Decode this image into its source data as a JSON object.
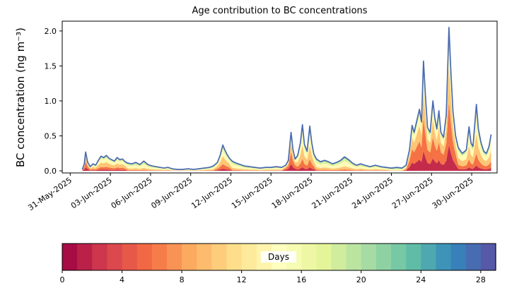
{
  "chart_data": {
    "type": "area",
    "title": "Age contribution to BC concentrations",
    "xlabel": "",
    "ylabel": "BC concentration (ng m⁻³)",
    "xlim": [
      -0.6,
      31.9
    ],
    "ylim": [
      -0.03,
      2.14
    ],
    "grid": false,
    "legend": "none",
    "line_color": "#4a6baf",
    "yticks": {
      "values": [
        0,
        0.5,
        1.0,
        1.5,
        2.0
      ],
      "labels": [
        "0.0",
        "0.5",
        "1.0",
        "1.5",
        "2.0"
      ]
    },
    "xticks": {
      "values": [
        0,
        3,
        6,
        9,
        12,
        15,
        18,
        21,
        24,
        27,
        30
      ],
      "labels": [
        "31-May-2025",
        "03-Jun-2025",
        "06-Jun-2025",
        "09-Jun-2025",
        "12-Jun-2025",
        "15-Jun-2025",
        "18-Jun-2025",
        "21-Jun-2025",
        "24-Jun-2025",
        "27-Jun-2025",
        "30-Jun-2025"
      ]
    },
    "age_bins": [
      {
        "label": "0-4",
        "color": "#c42b4b"
      },
      {
        "label": "4-8",
        "color": "#f57245"
      },
      {
        "label": "8-12",
        "color": "#fec574"
      },
      {
        "label": "12-16",
        "color": "#fffab6"
      },
      {
        "label": "16-20",
        "color": "#daf09b"
      },
      {
        "label": "20-24",
        "color": "#82cda5"
      },
      {
        "label": "24-28",
        "color": "#348abc"
      }
    ],
    "profiles": [
      [
        0.02,
        0.08,
        0.22,
        0.38,
        0.2,
        0.07,
        0.03
      ],
      [
        0.18,
        0.3,
        0.25,
        0.17,
        0.07,
        0.02,
        0.01
      ],
      [
        0.08,
        0.18,
        0.3,
        0.28,
        0.1,
        0.04,
        0.02
      ],
      [
        0.01,
        0.04,
        0.12,
        0.3,
        0.3,
        0.15,
        0.08
      ]
    ],
    "points": [
      [
        0.9,
        0.02,
        1
      ],
      [
        1.05,
        0.1,
        1
      ],
      [
        1.15,
        0.27,
        1
      ],
      [
        1.3,
        0.12,
        1
      ],
      [
        1.5,
        0.06,
        2
      ],
      [
        1.7,
        0.1,
        2
      ],
      [
        1.9,
        0.08,
        2
      ],
      [
        2.1,
        0.15,
        2
      ],
      [
        2.3,
        0.21,
        2
      ],
      [
        2.5,
        0.19,
        2
      ],
      [
        2.7,
        0.22,
        2
      ],
      [
        2.9,
        0.18,
        2
      ],
      [
        3.1,
        0.16,
        2
      ],
      [
        3.3,
        0.14,
        2
      ],
      [
        3.5,
        0.19,
        2
      ],
      [
        3.7,
        0.16,
        2
      ],
      [
        3.9,
        0.17,
        2
      ],
      [
        4.1,
        0.13,
        2
      ],
      [
        4.3,
        0.11,
        0
      ],
      [
        4.6,
        0.1,
        0
      ],
      [
        4.9,
        0.12,
        0
      ],
      [
        5.2,
        0.09,
        0
      ],
      [
        5.5,
        0.14,
        0
      ],
      [
        5.8,
        0.09,
        0
      ],
      [
        6.1,
        0.07,
        0
      ],
      [
        6.4,
        0.06,
        0
      ],
      [
        6.7,
        0.05,
        0
      ],
      [
        7.0,
        0.04,
        0
      ],
      [
        7.3,
        0.05,
        0
      ],
      [
        7.6,
        0.03,
        0
      ],
      [
        8.0,
        0.02,
        0
      ],
      [
        8.4,
        0.02,
        0
      ],
      [
        8.8,
        0.03,
        0
      ],
      [
        9.2,
        0.02,
        0
      ],
      [
        9.6,
        0.03,
        0
      ],
      [
        10.0,
        0.04,
        0
      ],
      [
        10.4,
        0.05,
        0
      ],
      [
        10.7,
        0.07,
        0
      ],
      [
        11.0,
        0.12,
        2
      ],
      [
        11.2,
        0.22,
        2
      ],
      [
        11.4,
        0.37,
        2
      ],
      [
        11.55,
        0.3,
        2
      ],
      [
        11.7,
        0.24,
        2
      ],
      [
        11.9,
        0.18,
        2
      ],
      [
        12.1,
        0.14,
        0
      ],
      [
        12.4,
        0.11,
        0
      ],
      [
        12.7,
        0.09,
        0
      ],
      [
        13.0,
        0.07,
        0
      ],
      [
        13.4,
        0.06,
        0
      ],
      [
        13.8,
        0.05,
        0
      ],
      [
        14.2,
        0.04,
        0
      ],
      [
        14.6,
        0.05,
        0
      ],
      [
        15.0,
        0.05,
        0
      ],
      [
        15.4,
        0.06,
        0
      ],
      [
        15.8,
        0.05,
        0
      ],
      [
        16.1,
        0.08,
        1
      ],
      [
        16.3,
        0.15,
        1
      ],
      [
        16.5,
        0.55,
        1
      ],
      [
        16.65,
        0.3,
        1
      ],
      [
        16.8,
        0.17,
        1
      ],
      [
        17.0,
        0.22,
        2
      ],
      [
        17.2,
        0.4,
        2
      ],
      [
        17.35,
        0.66,
        2
      ],
      [
        17.5,
        0.38,
        2
      ],
      [
        17.7,
        0.28,
        2
      ],
      [
        17.9,
        0.64,
        2
      ],
      [
        18.05,
        0.4,
        2
      ],
      [
        18.2,
        0.24,
        2
      ],
      [
        18.4,
        0.17,
        0
      ],
      [
        18.7,
        0.13,
        0
      ],
      [
        19.0,
        0.15,
        0
      ],
      [
        19.3,
        0.13,
        0
      ],
      [
        19.6,
        0.1,
        0
      ],
      [
        19.9,
        0.12,
        0
      ],
      [
        20.2,
        0.15,
        0
      ],
      [
        20.5,
        0.2,
        0
      ],
      [
        20.8,
        0.16,
        0
      ],
      [
        21.1,
        0.11,
        0
      ],
      [
        21.4,
        0.08,
        0
      ],
      [
        21.7,
        0.1,
        0
      ],
      [
        22.0,
        0.08,
        0
      ],
      [
        22.4,
        0.06,
        0
      ],
      [
        22.8,
        0.08,
        0
      ],
      [
        23.2,
        0.06,
        0
      ],
      [
        23.6,
        0.05,
        0
      ],
      [
        24.0,
        0.04,
        3
      ],
      [
        24.4,
        0.05,
        3
      ],
      [
        24.8,
        0.04,
        3
      ],
      [
        25.1,
        0.08,
        2
      ],
      [
        25.35,
        0.3,
        1
      ],
      [
        25.55,
        0.65,
        1
      ],
      [
        25.7,
        0.55,
        1
      ],
      [
        25.9,
        0.72,
        1
      ],
      [
        26.1,
        0.88,
        1
      ],
      [
        26.25,
        0.7,
        1
      ],
      [
        26.4,
        1.57,
        1
      ],
      [
        26.55,
        1.05,
        1
      ],
      [
        26.7,
        0.62,
        1
      ],
      [
        26.9,
        0.55,
        1
      ],
      [
        27.1,
        1.0,
        1
      ],
      [
        27.25,
        0.75,
        1
      ],
      [
        27.4,
        0.6,
        1
      ],
      [
        27.55,
        0.86,
        1
      ],
      [
        27.7,
        0.55,
        1
      ],
      [
        27.9,
        0.48,
        1
      ],
      [
        28.1,
        0.8,
        1
      ],
      [
        28.3,
        2.05,
        1
      ],
      [
        28.45,
        1.4,
        1
      ],
      [
        28.6,
        0.85,
        1
      ],
      [
        28.8,
        0.5,
        1
      ],
      [
        29.0,
        0.33,
        2
      ],
      [
        29.3,
        0.25,
        2
      ],
      [
        29.6,
        0.3,
        2
      ],
      [
        29.8,
        0.63,
        2
      ],
      [
        29.95,
        0.4,
        2
      ],
      [
        30.1,
        0.35,
        2
      ],
      [
        30.35,
        0.95,
        2
      ],
      [
        30.5,
        0.6,
        2
      ],
      [
        30.7,
        0.4,
        2
      ],
      [
        30.9,
        0.28,
        2
      ],
      [
        31.1,
        0.25,
        2
      ],
      [
        31.3,
        0.35,
        2
      ],
      [
        31.45,
        0.52,
        2
      ]
    ],
    "colorbar": {
      "label": "Days",
      "range": [
        0,
        29
      ],
      "segments": 29,
      "ticks": [
        0,
        4,
        8,
        12,
        16,
        20,
        24,
        28
      ],
      "stops": [
        "#9e0142",
        "#d53e4f",
        "#f46d43",
        "#fdae61",
        "#fee08b",
        "#ffffbf",
        "#e6f598",
        "#abdda4",
        "#66c2a5",
        "#3288bd",
        "#5e4fa2"
      ]
    }
  }
}
